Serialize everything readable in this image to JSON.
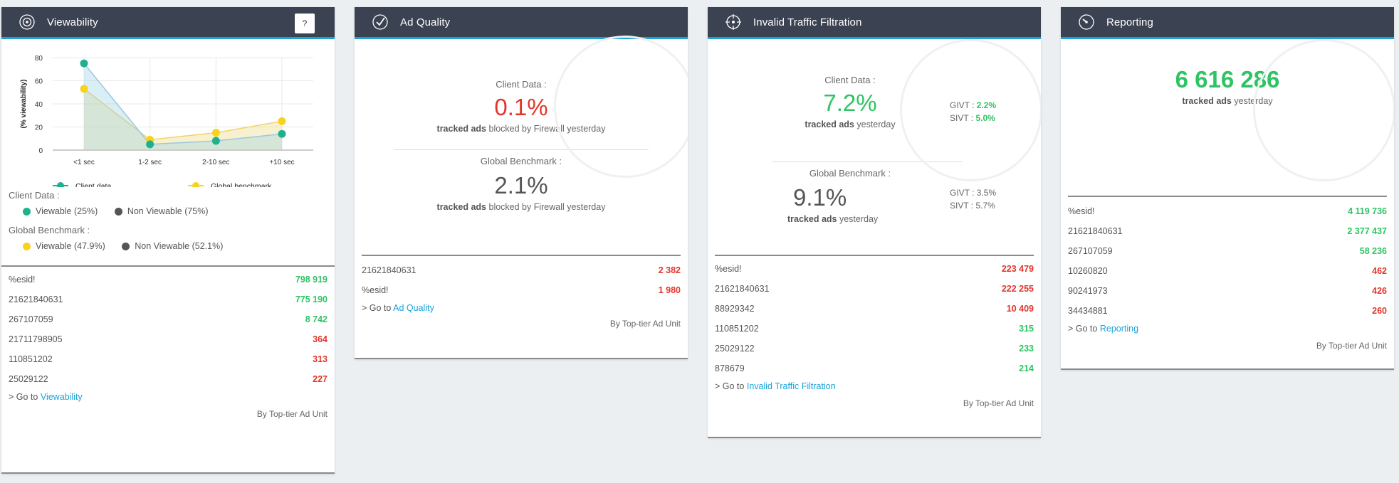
{
  "colors": {
    "header_bg": "#3b4252",
    "accent": "#1aa3d9",
    "green": "#2ec463",
    "red": "#e2362c",
    "client_series": "#1fb18d",
    "benchmark_series": "#f7d31e"
  },
  "viewability": {
    "title": "Viewability",
    "icon": "radar-icon",
    "help_label": "?",
    "client_data_label": "Client Data :",
    "client_legend": [
      {
        "label": "Viewable (25%)",
        "color": "#1fb18d"
      },
      {
        "label": "Non Viewable (75%)",
        "color": "#555555"
      }
    ],
    "benchmark_label": "Global Benchmark :",
    "benchmark_legend": [
      {
        "label": "Viewable (47.9%)",
        "color": "#f7d31e"
      },
      {
        "label": "Non Viewable (52.1%)",
        "color": "#555555"
      }
    ],
    "rows": [
      {
        "id": "%esid!",
        "value": "798 919",
        "status": "green"
      },
      {
        "id": "21621840631",
        "value": "775 190",
        "status": "green"
      },
      {
        "id": "267107059",
        "value": "8 742",
        "status": "green"
      },
      {
        "id": "21711798905",
        "value": "364",
        "status": "red"
      },
      {
        "id": "110851202",
        "value": "313",
        "status": "red"
      },
      {
        "id": "25029122",
        "value": "227",
        "status": "red"
      }
    ],
    "goto_prefix": "> Go to",
    "goto_link": "Viewability",
    "by_label": "By Top-tier Ad Unit"
  },
  "chart_data": {
    "type": "area",
    "categories": [
      "<1 sec",
      "1-2 sec",
      "2-10 sec",
      "+10 sec"
    ],
    "series": [
      {
        "name": "Client data",
        "values": [
          75,
          5,
          8,
          14
        ],
        "color": "#1fb18d"
      },
      {
        "name": "Global benchmark",
        "values": [
          53,
          9,
          15,
          25
        ],
        "color": "#f7d31e"
      }
    ],
    "ylabel": "(% viewability)",
    "yticks": [
      0,
      20,
      40,
      60,
      80
    ],
    "ylim": [
      0,
      80
    ],
    "grid": true,
    "legend_position": "bottom"
  },
  "ad_quality": {
    "title": "Ad Quality",
    "icon": "check-circle-icon",
    "client_label": "Client Data :",
    "client_value": "0.1%",
    "client_sub_bold": "tracked ads",
    "client_sub_rest": "blocked by Firewall yesterday",
    "bench_label": "Global Benchmark :",
    "bench_value": "2.1%",
    "bench_sub_bold": "tracked ads",
    "bench_sub_rest": "blocked by Firewall yesterday",
    "rows": [
      {
        "id": "21621840631",
        "value": "2 382",
        "status": "red"
      },
      {
        "id": "%esid!",
        "value": "1 980",
        "status": "red"
      }
    ],
    "goto_prefix": "> Go to",
    "goto_link": "Ad Quality",
    "by_label": "By Top-tier Ad Unit"
  },
  "ivt": {
    "title": "Invalid Traffic Filtration",
    "icon": "crosshair-icon",
    "client_label": "Client Data :",
    "client_value": "7.2%",
    "client_sub_bold": "tracked ads",
    "client_sub_rest": "yesterday",
    "givt_label": "GIVT :",
    "givt_value": "2.2%",
    "sivt_label": "SIVT :",
    "sivt_value": "5.0%",
    "bench_label": "Global Benchmark :",
    "bench_value": "9.1%",
    "bench_sub_bold": "tracked ads",
    "bench_sub_rest": "yesterday",
    "bench_givt": "GIVT : 3.5%",
    "bench_sivt": "SIVT : 5.7%",
    "rows": [
      {
        "id": "%esid!",
        "value": "223 479",
        "status": "red"
      },
      {
        "id": "21621840631",
        "value": "222 255",
        "status": "red"
      },
      {
        "id": "88929342",
        "value": "10 409",
        "status": "red"
      },
      {
        "id": "110851202",
        "value": "315",
        "status": "green"
      },
      {
        "id": "25029122",
        "value": "233",
        "status": "green"
      },
      {
        "id": "878679",
        "value": "214",
        "status": "green"
      }
    ],
    "goto_prefix": "> Go to",
    "goto_link": "Invalid Traffic Filtration",
    "by_label": "By Top-tier Ad Unit"
  },
  "reporting": {
    "title": "Reporting",
    "icon": "gauge-icon",
    "total_value": "6 616 286",
    "total_sub_bold": "tracked ads",
    "total_sub_rest": "yesterday",
    "rows": [
      {
        "id": "%esid!",
        "value": "4 119 736",
        "status": "green"
      },
      {
        "id": "21621840631",
        "value": "2 377 437",
        "status": "green"
      },
      {
        "id": "267107059",
        "value": "58 236",
        "status": "green"
      },
      {
        "id": "10260820",
        "value": "462",
        "status": "red"
      },
      {
        "id": "90241973",
        "value": "426",
        "status": "red"
      },
      {
        "id": "34434881",
        "value": "260",
        "status": "red"
      }
    ],
    "goto_prefix": "> Go to",
    "goto_link": "Reporting",
    "by_label": "By Top-tier Ad Unit"
  }
}
